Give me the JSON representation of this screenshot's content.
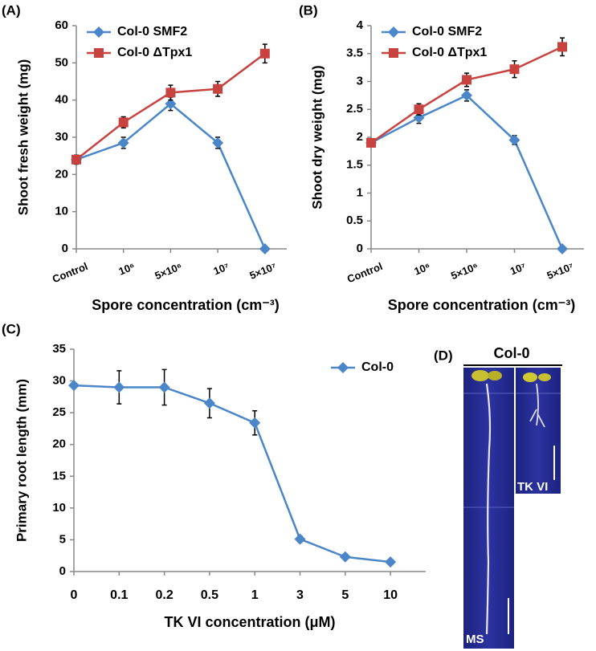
{
  "chart_data": [
    {
      "type": "line",
      "panel_label": "(A)",
      "y_label": "Shoot fresh weight (mg)",
      "x_label": "Spore concentration (cm⁻³)",
      "categories": [
        "Control",
        "10⁶",
        "5×10⁶",
        "10⁷",
        "5×10⁷"
      ],
      "ylim": [
        0,
        60
      ],
      "yticks": [
        0,
        10,
        20,
        30,
        40,
        50,
        60
      ],
      "series": [
        {
          "name": "Col-0  SMF2",
          "color": "#4a86c8",
          "marker": "diamond",
          "values": [
            24,
            28.5,
            39,
            28.5,
            0
          ],
          "errors": [
            1.2,
            1.5,
            1.8,
            1.5,
            0
          ]
        },
        {
          "name": "Col-0  ΔTpx1",
          "color": "#c8423f",
          "marker": "square",
          "values": [
            24,
            34,
            42,
            43,
            52.5
          ],
          "errors": [
            1.2,
            1.5,
            2,
            2,
            2.5
          ]
        }
      ]
    },
    {
      "type": "line",
      "panel_label": "(B)",
      "y_label": "Shoot dry weight (mg)",
      "x_label": "Spore concentration (cm⁻³)",
      "categories": [
        "Control",
        "10⁶",
        "5×10⁶",
        "10⁷",
        "5×10⁷"
      ],
      "ylim": [
        0,
        4
      ],
      "yticks": [
        0,
        0.5,
        1,
        1.5,
        2,
        2.5,
        3,
        3.5,
        4
      ],
      "series": [
        {
          "name": "Col-0  SMF2",
          "color": "#4a86c8",
          "marker": "diamond",
          "values": [
            1.9,
            2.35,
            2.75,
            1.95,
            0
          ],
          "errors": [
            0.06,
            0.1,
            0.1,
            0.08,
            0
          ]
        },
        {
          "name": "Col-0  ΔTpx1",
          "color": "#c8423f",
          "marker": "square",
          "values": [
            1.9,
            2.5,
            3.03,
            3.22,
            3.62
          ],
          "errors": [
            0.05,
            0.1,
            0.12,
            0.15,
            0.16
          ]
        }
      ]
    },
    {
      "type": "line",
      "panel_label": "(C)",
      "y_label": "Primary root length (mm)",
      "x_label": "TK VI concentration (μM)",
      "categories": [
        "0",
        "0.1",
        "0.2",
        "0.5",
        "1",
        "3",
        "5",
        "10"
      ],
      "ylim": [
        0,
        35
      ],
      "yticks": [
        0,
        5,
        10,
        15,
        20,
        25,
        30,
        35
      ],
      "series": [
        {
          "name": "Col-0",
          "color": "#4a86c8",
          "marker": "diamond",
          "values": [
            29.3,
            29,
            29,
            26.5,
            23.4,
            5.1,
            2.3,
            1.5
          ],
          "errors": [
            0,
            2.6,
            2.8,
            2.3,
            1.9,
            0.5,
            0,
            0
          ]
        }
      ]
    }
  ],
  "panel_d": {
    "panel_label": "(D)",
    "title": "Col-0",
    "labels": [
      "MS",
      "TK VI"
    ]
  }
}
